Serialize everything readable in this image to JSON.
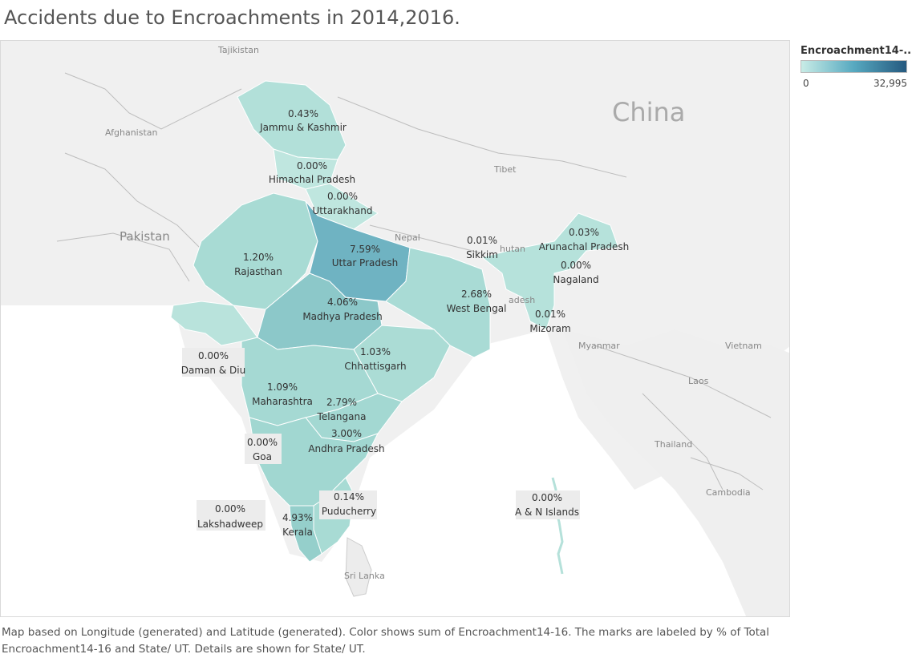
{
  "title": "Accidents due to Encroachments in 2014,2016.",
  "legend": {
    "title": "Encroachment14-..",
    "min": "0",
    "max": "32,995",
    "colors": {
      "low": "#c8ece6",
      "mid": "#57a9c0",
      "high": "#25597f"
    }
  },
  "base_map_labels": {
    "tajikistan": "Tajikistan",
    "afghanistan": "Afghanistan",
    "pakistan": "Pakistan",
    "china": "China",
    "tibet": "Tibet",
    "nepal": "Nepal",
    "bhutan": "hutan",
    "bangladesh": "adesh",
    "myanmar": "Myanmar",
    "vietnam": "Vietnam",
    "laos": "Laos",
    "thailand": "Thailand",
    "cambodia": "Cambodia",
    "sri_lanka": "Sri Lanka"
  },
  "states": [
    {
      "name": "Jammu & Kashmir",
      "pct": "0.43%"
    },
    {
      "name": "Himachal Pradesh",
      "pct": "0.00%"
    },
    {
      "name": "Uttarakhand",
      "pct": "0.00%"
    },
    {
      "name": "Rajasthan",
      "pct": "1.20%"
    },
    {
      "name": "Uttar Pradesh",
      "pct": "7.59%"
    },
    {
      "name": "Sikkim",
      "pct": "0.01%"
    },
    {
      "name": "Arunachal Pradesh",
      "pct": "0.03%"
    },
    {
      "name": "Nagaland",
      "pct": "0.00%"
    },
    {
      "name": "West Bengal",
      "pct": "2.68%"
    },
    {
      "name": "Madhya Pradesh",
      "pct": "4.06%"
    },
    {
      "name": "Mizoram",
      "pct": "0.01%"
    },
    {
      "name": "Daman & Diu",
      "pct": "0.00%"
    },
    {
      "name": "Chhattisgarh",
      "pct": "1.03%"
    },
    {
      "name": "Maharashtra",
      "pct": "1.09%"
    },
    {
      "name": "Telangana",
      "pct": "2.79%"
    },
    {
      "name": "Goa",
      "pct": "0.00%"
    },
    {
      "name": "Andhra Pradesh",
      "pct": "3.00%"
    },
    {
      "name": "Lakshadweep",
      "pct": "0.00%"
    },
    {
      "name": "Puducherry",
      "pct": "0.14%"
    },
    {
      "name": "Kerala",
      "pct": "4.93%"
    },
    {
      "name": "A & N Islands",
      "pct": "0.00%"
    }
  ],
  "caption": "Map based on Longitude (generated) and Latitude (generated).  Color shows sum of Encroachment14-16.  The marks are labeled by % of Total Encroachment14-16 and State/ UT.  Details are shown for State/ UT."
}
